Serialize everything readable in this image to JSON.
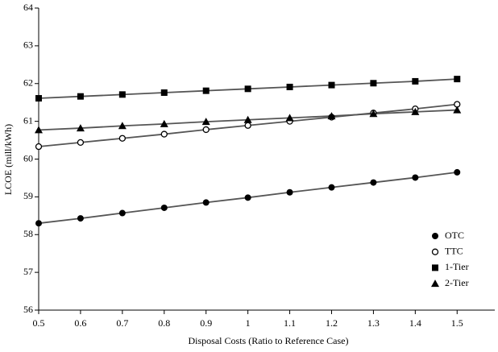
{
  "chart_data": {
    "type": "line",
    "x_label": "Disposal Costs (Ratio to Reference Case)",
    "y_label": "LCOE (mill/kWh)",
    "x": [
      0.5,
      0.6,
      0.7,
      0.8,
      0.9,
      1,
      1.1,
      1.2,
      1.3,
      1.4,
      1.5
    ],
    "xlim": [
      0.5,
      1.59
    ],
    "xticks": [
      0.5,
      0.6,
      0.7,
      0.8,
      0.9,
      1,
      1.1,
      1.2,
      1.3,
      1.4,
      1.5
    ],
    "ylim": [
      56,
      64
    ],
    "yticks": [
      56,
      57,
      58,
      59,
      60,
      61,
      62,
      63,
      64
    ],
    "line_color": "#555555",
    "legend": "lower right",
    "series": [
      {
        "name": "OTC",
        "color": "#000000",
        "marker": "circle-filled",
        "values": [
          58.3,
          58.43,
          58.57,
          58.71,
          58.85,
          58.98,
          59.12,
          59.25,
          59.38,
          59.51,
          59.65
        ]
      },
      {
        "name": "TTC",
        "color": "#000000",
        "marker": "circle-open",
        "values": [
          60.33,
          60.44,
          60.55,
          60.66,
          60.78,
          60.89,
          61.0,
          61.11,
          61.22,
          61.33,
          61.45
        ]
      },
      {
        "name": "1-Tier",
        "color": "#000000",
        "marker": "square",
        "values": [
          61.61,
          61.66,
          61.71,
          61.76,
          61.81,
          61.86,
          61.91,
          61.96,
          62.01,
          62.06,
          62.12
        ]
      },
      {
        "name": "2-Tier",
        "color": "#000000",
        "marker": "triangle",
        "values": [
          60.77,
          60.82,
          60.88,
          60.93,
          60.99,
          61.04,
          61.09,
          61.14,
          61.2,
          61.25,
          61.3
        ]
      }
    ]
  }
}
